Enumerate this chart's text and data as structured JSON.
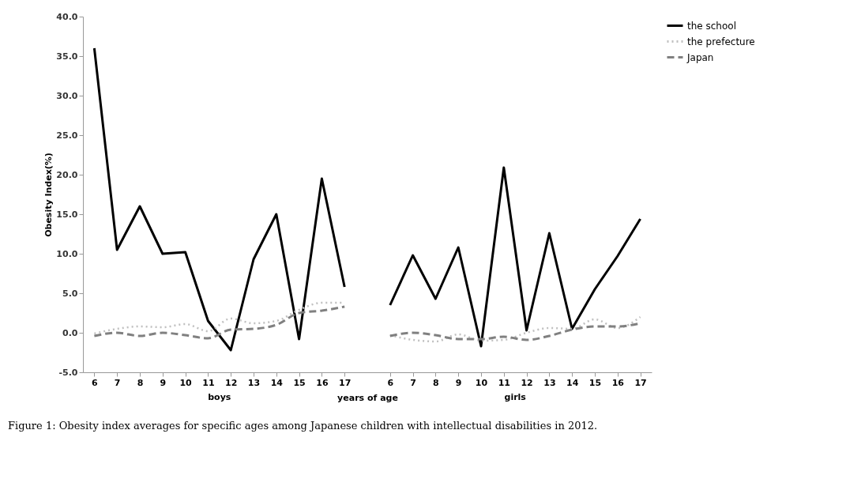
{
  "chart_data": {
    "type": "line",
    "categories": [
      "6",
      "7",
      "8",
      "9",
      "10",
      "11",
      "12",
      "13",
      "14",
      "15",
      "16",
      "17",
      null,
      "6",
      "7",
      "8",
      "9",
      "10",
      "11",
      "12",
      "13",
      "14",
      "15",
      "16",
      "17"
    ],
    "xlabel": "years of age",
    "ylabel": "Obesity Index(%)",
    "ylim": [
      -5,
      40
    ],
    "yticks": [
      {
        "value": -5,
        "label": "-5.0"
      },
      {
        "value": 0,
        "label": "0.0"
      },
      {
        "value": 5,
        "label": "5.0"
      },
      {
        "value": 10,
        "label": "10.0"
      },
      {
        "value": 15,
        "label": "15.0"
      },
      {
        "value": 20,
        "label": "20.0"
      },
      {
        "value": 25,
        "label": "25.0"
      },
      {
        "value": 30,
        "label": "30.0"
      },
      {
        "value": 35,
        "label": "35.0"
      },
      {
        "value": 40,
        "label": "40.0"
      }
    ],
    "series": [
      {
        "name": "the school",
        "color": "#000000",
        "line_style": "solid",
        "values": [
          36.0,
          10.5,
          16.0,
          10.0,
          10.2,
          1.5,
          -2.2,
          9.3,
          15.0,
          -0.8,
          19.5,
          5.8,
          null,
          3.5,
          9.8,
          4.3,
          10.8,
          -1.7,
          20.9,
          0.3,
          12.6,
          0.5,
          5.5,
          9.7,
          14.4
        ]
      },
      {
        "name": "the prefecture",
        "color": "#c0c0c0",
        "line_style": "dotted",
        "values": [
          -0.1,
          0.5,
          0.8,
          0.7,
          1.1,
          0.2,
          1.8,
          1.2,
          1.5,
          2.9,
          3.8,
          3.8,
          null,
          -0.3,
          -0.9,
          -1.1,
          -0.2,
          -1.0,
          -0.9,
          0.0,
          0.6,
          0.5,
          1.7,
          0.6,
          2.0
        ]
      },
      {
        "name": "Japan",
        "color": "#808080",
        "line_style": "dashed",
        "values": [
          -0.4,
          0.0,
          -0.4,
          0.0,
          -0.3,
          -0.7,
          0.4,
          0.5,
          1.0,
          2.5,
          2.8,
          3.3,
          null,
          -0.4,
          0.0,
          -0.3,
          -0.8,
          -0.8,
          -0.5,
          -0.9,
          -0.4,
          0.4,
          0.8,
          0.8,
          1.2
        ]
      }
    ],
    "legend": "right",
    "grid": false,
    "marker": "none",
    "annotations": [
      "boys",
      "girls",
      "Figure 1: Obesity index averages for specific ages among Japanese children with intellectual disabilities in 2012."
    ]
  }
}
